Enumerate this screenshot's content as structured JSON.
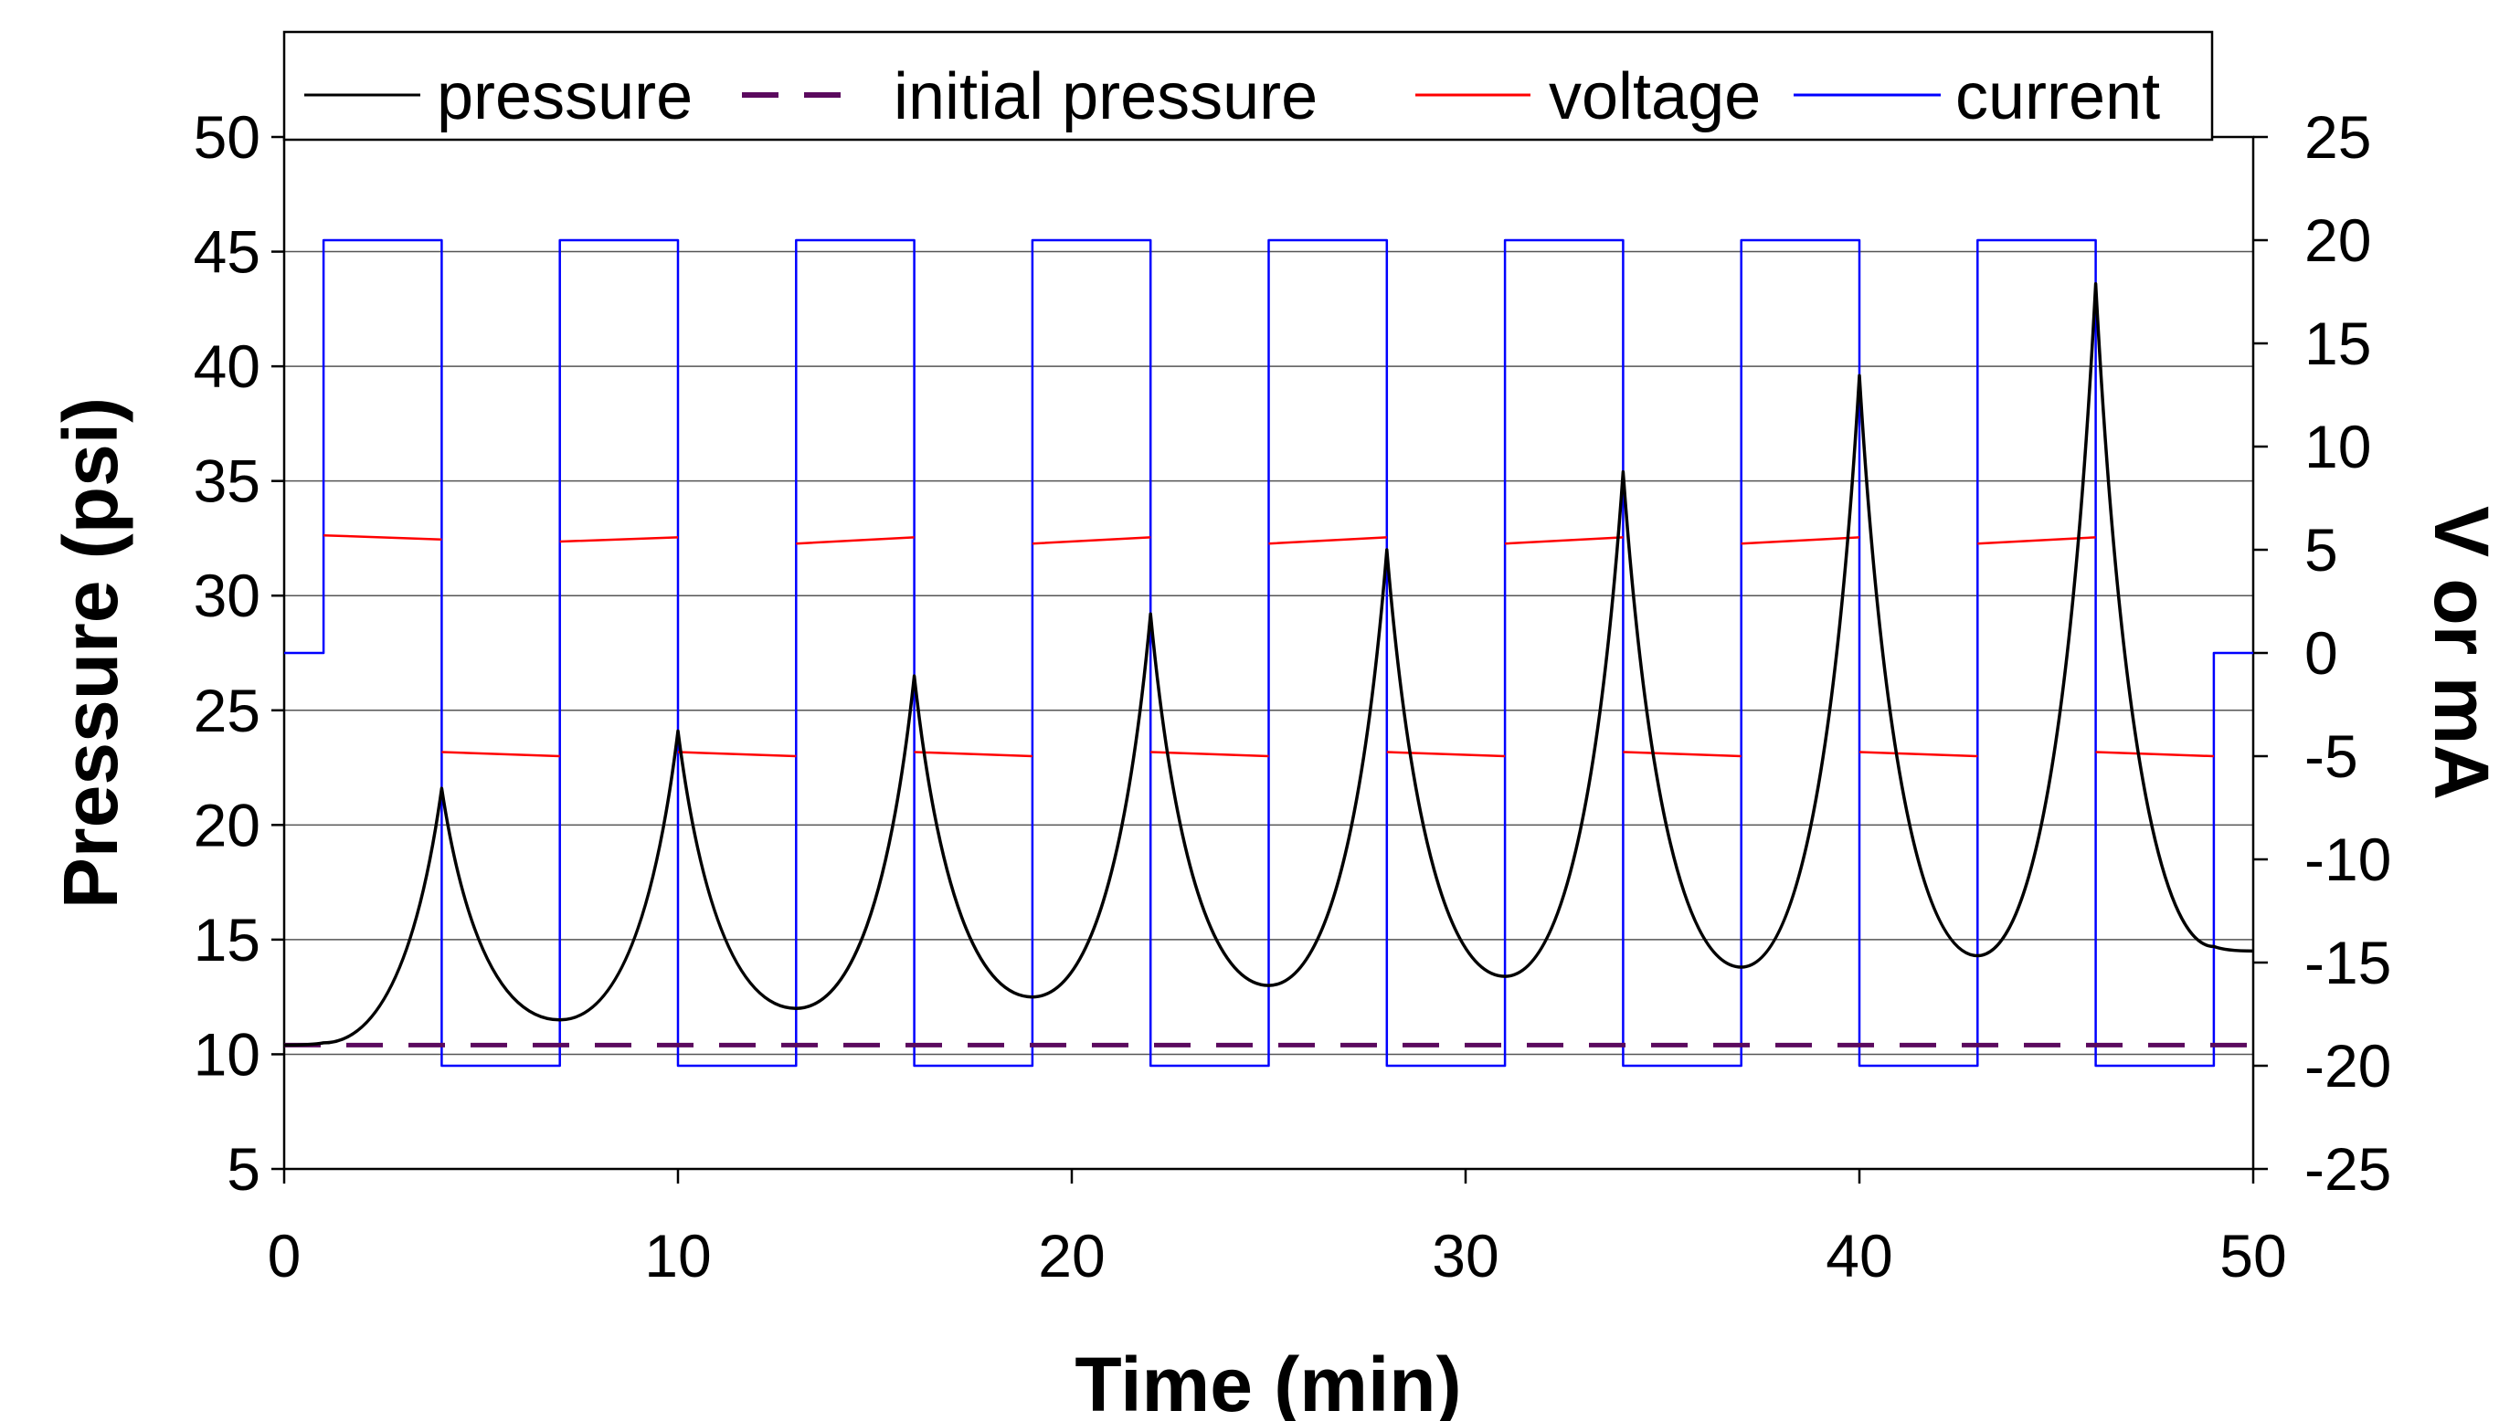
{
  "chart_data": {
    "type": "line",
    "xlabel": "Time (min)",
    "ylabel": "Pressure (psi)",
    "y2label": "V or mA",
    "xlim": [
      0,
      50
    ],
    "ylim": [
      5,
      50
    ],
    "y2lim": [
      -25,
      25
    ],
    "x_ticks": [
      "0",
      "10",
      "20",
      "30",
      "40",
      "50"
    ],
    "y_ticks": [
      "5",
      "10",
      "15",
      "20",
      "25",
      "30",
      "35",
      "40",
      "45",
      "50"
    ],
    "y2_ticks": [
      "-25",
      "-20",
      "-15",
      "-10",
      "-5",
      "0",
      "5",
      "10",
      "15",
      "20",
      "25"
    ],
    "grid": "horizontal",
    "legend_position": "top",
    "series": [
      {
        "name": "pressure",
        "axis": "left",
        "color": "#000000",
        "style": "solid",
        "x": [
          0,
          1,
          4,
          7,
          10,
          13,
          16,
          19,
          22,
          25,
          28,
          31,
          34,
          37,
          40,
          43,
          46,
          49,
          50
        ],
        "y": [
          10.4,
          10.5,
          21.6,
          11.5,
          24.1,
          12.0,
          26.5,
          12.5,
          29.2,
          13.0,
          32.0,
          13.4,
          35.4,
          13.8,
          39.6,
          14.3,
          43.6,
          14.7,
          14.5
        ]
      },
      {
        "name": "initial pressure",
        "axis": "left",
        "color": "#5b0a5e",
        "style": "dashed",
        "x": [
          0,
          50
        ],
        "y": [
          10.4,
          10.4
        ]
      },
      {
        "name": "voltage",
        "axis": "right",
        "color": "#ff0000",
        "style": "solid",
        "x": [
          1,
          4,
          4,
          7,
          7,
          10,
          10,
          13,
          13,
          16,
          16,
          19,
          19,
          22,
          22,
          25,
          25,
          28,
          28,
          31,
          31,
          34,
          34,
          37,
          37,
          40,
          40,
          43,
          43,
          46,
          46,
          49
        ],
        "y": [
          5.7,
          5.5,
          -4.8,
          -5.0,
          5.4,
          5.6,
          -4.8,
          -5.0,
          5.3,
          5.6,
          -4.8,
          -5.0,
          5.3,
          5.6,
          -4.8,
          -5.0,
          5.3,
          5.6,
          -4.8,
          -5.0,
          5.3,
          5.6,
          -4.8,
          -5.0,
          5.3,
          5.6,
          -4.8,
          -5.0,
          5.3,
          5.6,
          -4.8,
          -5.0
        ]
      },
      {
        "name": "current",
        "axis": "right",
        "color": "#0000ff",
        "style": "solid",
        "x": [
          0,
          1,
          1,
          4,
          4,
          7,
          7,
          10,
          10,
          13,
          13,
          16,
          16,
          19,
          19,
          22,
          22,
          25,
          25,
          28,
          28,
          31,
          31,
          34,
          34,
          37,
          37,
          40,
          40,
          43,
          43,
          46,
          46,
          49,
          49,
          50
        ],
        "y": [
          0,
          0,
          20,
          20,
          -20,
          -20,
          20,
          20,
          -20,
          -20,
          20,
          20,
          -20,
          -20,
          20,
          20,
          -20,
          -20,
          20,
          20,
          -20,
          -20,
          20,
          20,
          -20,
          -20,
          20,
          20,
          -20,
          -20,
          20,
          20,
          -20,
          -20,
          0,
          0
        ]
      }
    ]
  },
  "legend": {
    "pressure": "pressure",
    "initial_pressure": "initial pressure",
    "voltage": "voltage",
    "current": "current"
  }
}
